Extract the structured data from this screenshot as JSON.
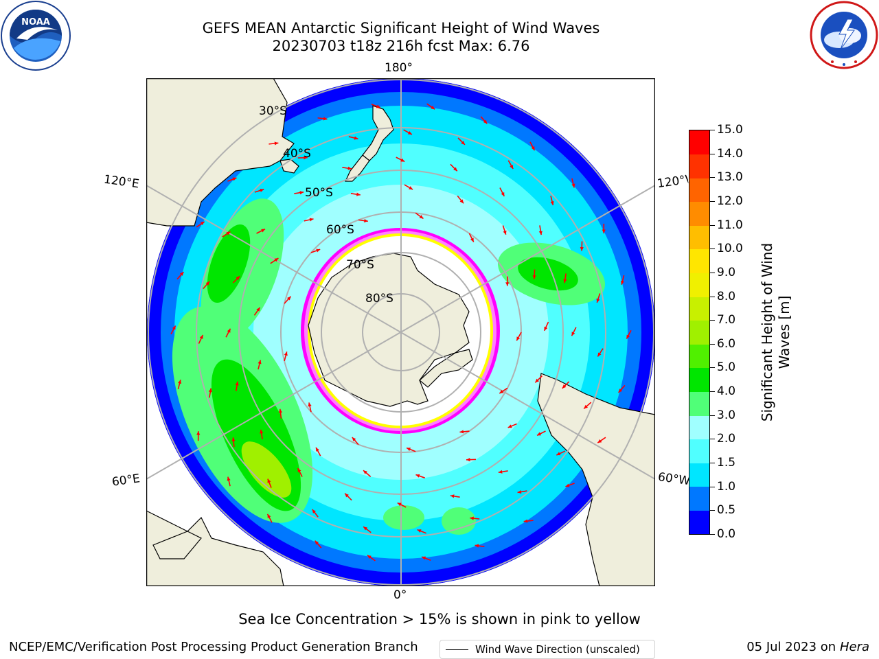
{
  "header": {
    "title_line1": "GEFS MEAN Antarctic Significant Height of Wind Waves",
    "title_line2": "20230703 t18z 216h fcst   Max: 6.76"
  },
  "logos": {
    "left": "noaa-logo",
    "right": "national-weather-service-logo"
  },
  "map": {
    "projection": "south-polar-stereographic",
    "parallel_labels": [
      "30°S",
      "40°S",
      "50°S",
      "60°S",
      "70°S",
      "80°S"
    ],
    "meridian_labels": {
      "top": "180°",
      "bottom": "0°",
      "left_upper": "120°E",
      "left_lower": "60°E",
      "right_upper": "120°W",
      "right_lower": "60°W"
    },
    "land_color": "#efeedc",
    "sea_ice_colors": [
      "#ff00ff",
      "#ff80ff",
      "#ffff00"
    ],
    "arrow_color": "#ff0000",
    "legend_label": "Wind Wave Direction (unscaled)"
  },
  "colorbar": {
    "label": "Significant Height of Wind Waves [m]",
    "title_line1": "Significant Height of Wind",
    "title_line2": "Waves [m]",
    "ticks": [
      "0.0",
      "0.5",
      "1.0",
      "1.5",
      "2.0",
      "3.0",
      "4.0",
      "5.0",
      "6.0",
      "7.0",
      "8.0",
      "9.0",
      "10.0",
      "11.0",
      "12.0",
      "13.0",
      "14.0",
      "15.0"
    ],
    "colors": [
      "#0000ff",
      "#0078ff",
      "#00e6ff",
      "#50ffff",
      "#a0ffff",
      "#50ff78",
      "#00e600",
      "#50f000",
      "#a0f000",
      "#c8f000",
      "#f0f000",
      "#ffe600",
      "#ffbe00",
      "#ff8c00",
      "#ff6400",
      "#ff3200",
      "#ff0000"
    ]
  },
  "footer": {
    "sea_ice_note": "Sea Ice Concentration > 15% is shown in pink to yellow",
    "credit": "NCEP/EMC/Verification Post Processing Product Generation Branch",
    "date_prefix": "05 Jul 2023 on ",
    "date_host": "Hera"
  }
}
